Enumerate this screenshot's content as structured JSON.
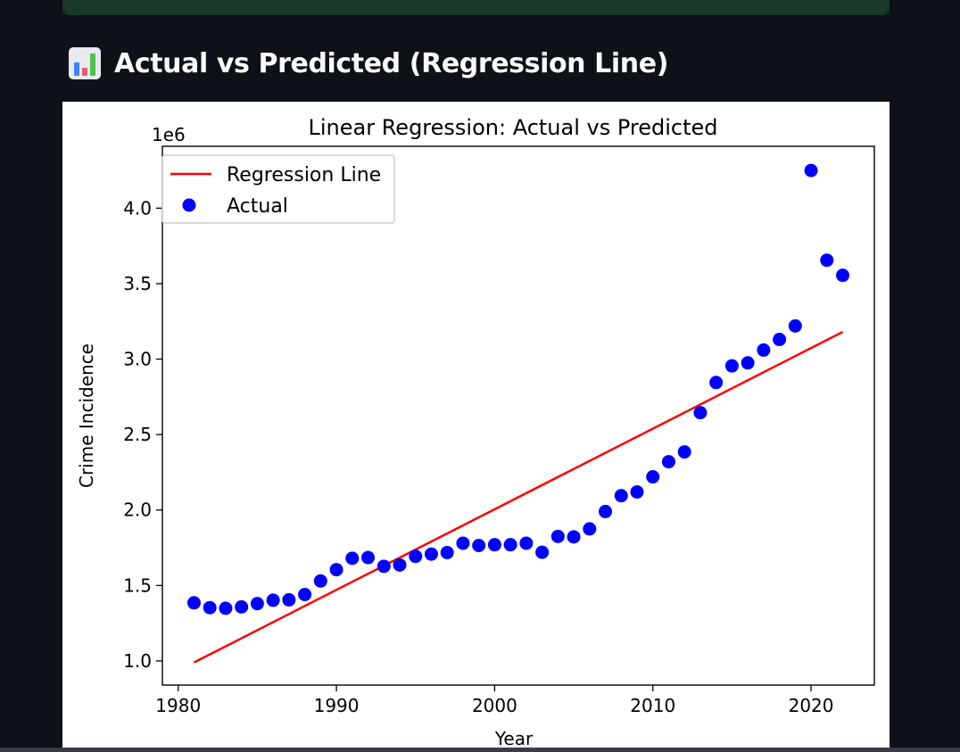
{
  "section": {
    "icon": "bar-chart-icon",
    "title": "Actual vs Predicted (Regression Line)"
  },
  "chart_data": {
    "type": "scatter",
    "title": "Linear Regression: Actual vs Predicted",
    "xlabel": "Year",
    "ylabel": "Crime Incidence",
    "y_offset_label": "1e6",
    "xlim": [
      1979.0,
      2024.0
    ],
    "ylim": [
      0.84,
      4.41
    ],
    "x_ticks": [
      1980,
      1990,
      2000,
      2010,
      2020
    ],
    "y_ticks": [
      1.0,
      1.5,
      2.0,
      2.5,
      3.0,
      3.5,
      4.0
    ],
    "y_tick_labels": [
      "1.0",
      "1.5",
      "2.0",
      "2.5",
      "3.0",
      "3.5",
      "4.0"
    ],
    "grid": false,
    "legend_position": "upper-left",
    "legend": [
      {
        "label": "Regression Line",
        "type": "line",
        "color": "#ff0000"
      },
      {
        "label": "Actual",
        "type": "marker",
        "color": "#0000ff"
      }
    ],
    "series": [
      {
        "name": "Actual",
        "type": "scatter",
        "color": "#0000ff",
        "x": [
          1981,
          1982,
          1983,
          1984,
          1985,
          1986,
          1987,
          1988,
          1989,
          1990,
          1991,
          1992,
          1993,
          1994,
          1995,
          1996,
          1997,
          1998,
          1999,
          2000,
          2001,
          2002,
          2003,
          2004,
          2005,
          2006,
          2007,
          2008,
          2009,
          2010,
          2011,
          2012,
          2013,
          2014,
          2015,
          2016,
          2017,
          2018,
          2019,
          2020,
          2021,
          2022
        ],
        "y": [
          1.385,
          1.353,
          1.349,
          1.358,
          1.38,
          1.402,
          1.405,
          1.44,
          1.53,
          1.605,
          1.68,
          1.685,
          1.627,
          1.636,
          1.693,
          1.708,
          1.718,
          1.78,
          1.765,
          1.77,
          1.77,
          1.78,
          1.72,
          1.825,
          1.822,
          1.875,
          1.99,
          2.095,
          2.12,
          2.22,
          2.32,
          2.385,
          2.645,
          2.845,
          2.955,
          2.975,
          3.06,
          3.13,
          3.22,
          4.25,
          3.655,
          3.555
        ]
      },
      {
        "name": "Regression Line",
        "type": "line",
        "color": "#ff0000",
        "x": [
          1981,
          2022
        ],
        "y": [
          0.99,
          3.18
        ]
      }
    ]
  }
}
